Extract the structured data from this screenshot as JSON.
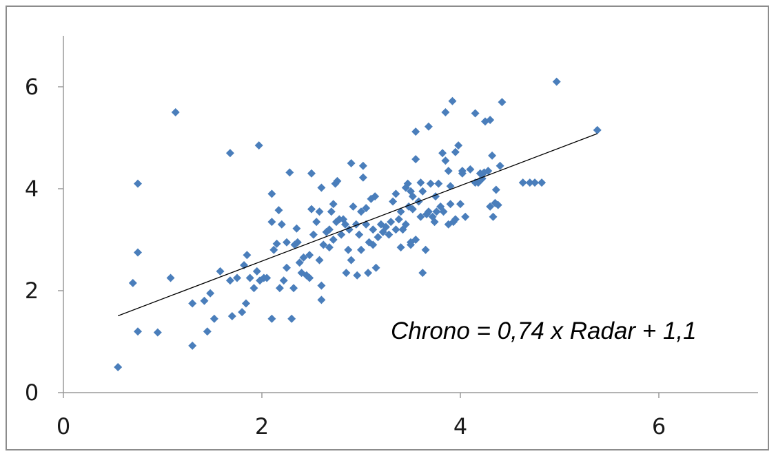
{
  "chart_data": {
    "type": "scatter",
    "title": "",
    "xlabel": "",
    "ylabel": "",
    "xlim": [
      0,
      7
    ],
    "ylim": [
      0,
      7
    ],
    "x_ticks": [
      "0",
      "2",
      "4",
      "6"
    ],
    "y_ticks": [
      "0",
      "2",
      "4",
      "6"
    ],
    "grid": false,
    "legend": "none",
    "marker": "diamond",
    "marker_color": "#4a7ebb",
    "trendline": {
      "slope": 0.74,
      "intercept": 1.1,
      "x_range": [
        0.55,
        5.38
      ],
      "color": "#000000"
    },
    "annotation": "Chrono = 0,74 x Radar + 1,1",
    "points": [
      [
        0.55,
        0.5
      ],
      [
        0.7,
        2.15
      ],
      [
        0.75,
        4.1
      ],
      [
        0.75,
        2.75
      ],
      [
        0.75,
        1.2
      ],
      [
        0.95,
        1.18
      ],
      [
        1.08,
        2.25
      ],
      [
        1.13,
        5.5
      ],
      [
        1.3,
        1.75
      ],
      [
        1.3,
        0.92
      ],
      [
        1.42,
        1.8
      ],
      [
        1.45,
        1.2
      ],
      [
        1.48,
        1.95
      ],
      [
        1.52,
        1.45
      ],
      [
        1.58,
        2.38
      ],
      [
        1.68,
        4.7
      ],
      [
        1.68,
        2.2
      ],
      [
        1.7,
        1.5
      ],
      [
        1.75,
        2.25
      ],
      [
        1.8,
        1.58
      ],
      [
        1.82,
        2.5
      ],
      [
        1.84,
        1.75
      ],
      [
        1.85,
        2.7
      ],
      [
        1.88,
        2.25
      ],
      [
        1.92,
        2.05
      ],
      [
        1.95,
        2.38
      ],
      [
        1.97,
        4.85
      ],
      [
        1.98,
        2.2
      ],
      [
        2.02,
        2.25
      ],
      [
        2.05,
        2.25
      ],
      [
        2.1,
        3.9
      ],
      [
        2.1,
        1.45
      ],
      [
        2.1,
        3.35
      ],
      [
        2.12,
        2.8
      ],
      [
        2.15,
        2.92
      ],
      [
        2.17,
        3.58
      ],
      [
        2.18,
        2.05
      ],
      [
        2.2,
        3.3
      ],
      [
        2.22,
        2.2
      ],
      [
        2.25,
        2.45
      ],
      [
        2.25,
        2.95
      ],
      [
        2.28,
        4.32
      ],
      [
        2.3,
        1.45
      ],
      [
        2.32,
        2.05
      ],
      [
        2.33,
        2.9
      ],
      [
        2.35,
        3.22
      ],
      [
        2.36,
        2.95
      ],
      [
        2.38,
        2.55
      ],
      [
        2.4,
        2.35
      ],
      [
        2.42,
        2.65
      ],
      [
        2.45,
        2.3
      ],
      [
        2.48,
        2.7
      ],
      [
        2.48,
        2.25
      ],
      [
        2.5,
        4.3
      ],
      [
        2.5,
        3.6
      ],
      [
        2.52,
        3.1
      ],
      [
        2.55,
        3.35
      ],
      [
        2.58,
        2.6
      ],
      [
        2.58,
        3.55
      ],
      [
        2.6,
        1.82
      ],
      [
        2.6,
        2.1
      ],
      [
        2.6,
        4.02
      ],
      [
        2.62,
        2.9
      ],
      [
        2.65,
        3.15
      ],
      [
        2.68,
        3.2
      ],
      [
        2.68,
        2.85
      ],
      [
        2.7,
        3.55
      ],
      [
        2.72,
        3.0
      ],
      [
        2.72,
        3.7
      ],
      [
        2.74,
        4.1
      ],
      [
        2.75,
        3.35
      ],
      [
        2.76,
        4.15
      ],
      [
        2.78,
        3.4
      ],
      [
        2.8,
        3.1
      ],
      [
        2.82,
        3.4
      ],
      [
        2.84,
        3.3
      ],
      [
        2.85,
        2.35
      ],
      [
        2.87,
        2.8
      ],
      [
        2.88,
        3.2
      ],
      [
        2.9,
        2.6
      ],
      [
        2.9,
        4.5
      ],
      [
        2.92,
        3.65
      ],
      [
        2.95,
        3.3
      ],
      [
        2.96,
        2.3
      ],
      [
        2.98,
        3.1
      ],
      [
        3.0,
        3.55
      ],
      [
        3.0,
        2.8
      ],
      [
        3.02,
        4.22
      ],
      [
        3.02,
        4.45
      ],
      [
        3.05,
        3.3
      ],
      [
        3.05,
        3.62
      ],
      [
        3.07,
        2.35
      ],
      [
        3.08,
        2.95
      ],
      [
        3.1,
        3.8
      ],
      [
        3.12,
        3.2
      ],
      [
        3.12,
        2.9
      ],
      [
        3.14,
        3.85
      ],
      [
        3.15,
        2.45
      ],
      [
        3.17,
        3.05
      ],
      [
        3.2,
        3.3
      ],
      [
        3.22,
        3.15
      ],
      [
        3.25,
        3.25
      ],
      [
        3.28,
        3.1
      ],
      [
        3.3,
        3.35
      ],
      [
        3.32,
        3.75
      ],
      [
        3.35,
        3.2
      ],
      [
        3.35,
        3.9
      ],
      [
        3.38,
        3.4
      ],
      [
        3.4,
        2.85
      ],
      [
        3.4,
        3.55
      ],
      [
        3.42,
        3.2
      ],
      [
        3.45,
        4.02
      ],
      [
        3.45,
        3.3
      ],
      [
        3.47,
        4.1
      ],
      [
        3.48,
        3.65
      ],
      [
        3.5,
        3.95
      ],
      [
        3.5,
        2.9
      ],
      [
        3.5,
        2.95
      ],
      [
        3.52,
        3.6
      ],
      [
        3.52,
        3.85
      ],
      [
        3.55,
        3.0
      ],
      [
        3.55,
        4.58
      ],
      [
        3.55,
        5.12
      ],
      [
        3.58,
        3.75
      ],
      [
        3.6,
        3.45
      ],
      [
        3.6,
        4.12
      ],
      [
        3.62,
        2.35
      ],
      [
        3.62,
        3.95
      ],
      [
        3.65,
        2.8
      ],
      [
        3.66,
        3.5
      ],
      [
        3.68,
        3.55
      ],
      [
        3.68,
        5.22
      ],
      [
        3.7,
        4.1
      ],
      [
        3.72,
        3.45
      ],
      [
        3.74,
        3.35
      ],
      [
        3.75,
        3.85
      ],
      [
        3.76,
        3.55
      ],
      [
        3.78,
        4.1
      ],
      [
        3.8,
        3.65
      ],
      [
        3.82,
        4.7
      ],
      [
        3.83,
        3.55
      ],
      [
        3.85,
        5.5
      ],
      [
        3.85,
        4.55
      ],
      [
        3.88,
        3.3
      ],
      [
        3.88,
        4.35
      ],
      [
        3.9,
        3.7
      ],
      [
        3.9,
        4.05
      ],
      [
        3.92,
        5.72
      ],
      [
        3.93,
        3.35
      ],
      [
        3.95,
        4.72
      ],
      [
        3.95,
        3.4
      ],
      [
        3.98,
        4.85
      ],
      [
        4.0,
        3.7
      ],
      [
        4.02,
        4.3
      ],
      [
        4.02,
        4.35
      ],
      [
        4.05,
        3.45
      ],
      [
        4.1,
        4.38
      ],
      [
        4.15,
        5.48
      ],
      [
        4.15,
        4.12
      ],
      [
        4.18,
        4.12
      ],
      [
        4.2,
        4.3
      ],
      [
        4.22,
        4.2
      ],
      [
        4.24,
        4.32
      ],
      [
        4.25,
        5.32
      ],
      [
        4.28,
        4.35
      ],
      [
        4.3,
        5.35
      ],
      [
        4.3,
        3.65
      ],
      [
        4.32,
        4.65
      ],
      [
        4.33,
        3.45
      ],
      [
        4.35,
        3.72
      ],
      [
        4.36,
        3.98
      ],
      [
        4.38,
        3.68
      ],
      [
        4.4,
        4.45
      ],
      [
        4.42,
        5.7
      ],
      [
        4.63,
        4.12
      ],
      [
        4.7,
        4.12
      ],
      [
        4.75,
        4.12
      ],
      [
        4.82,
        4.12
      ],
      [
        4.97,
        6.1
      ],
      [
        5.38,
        5.15
      ]
    ]
  }
}
